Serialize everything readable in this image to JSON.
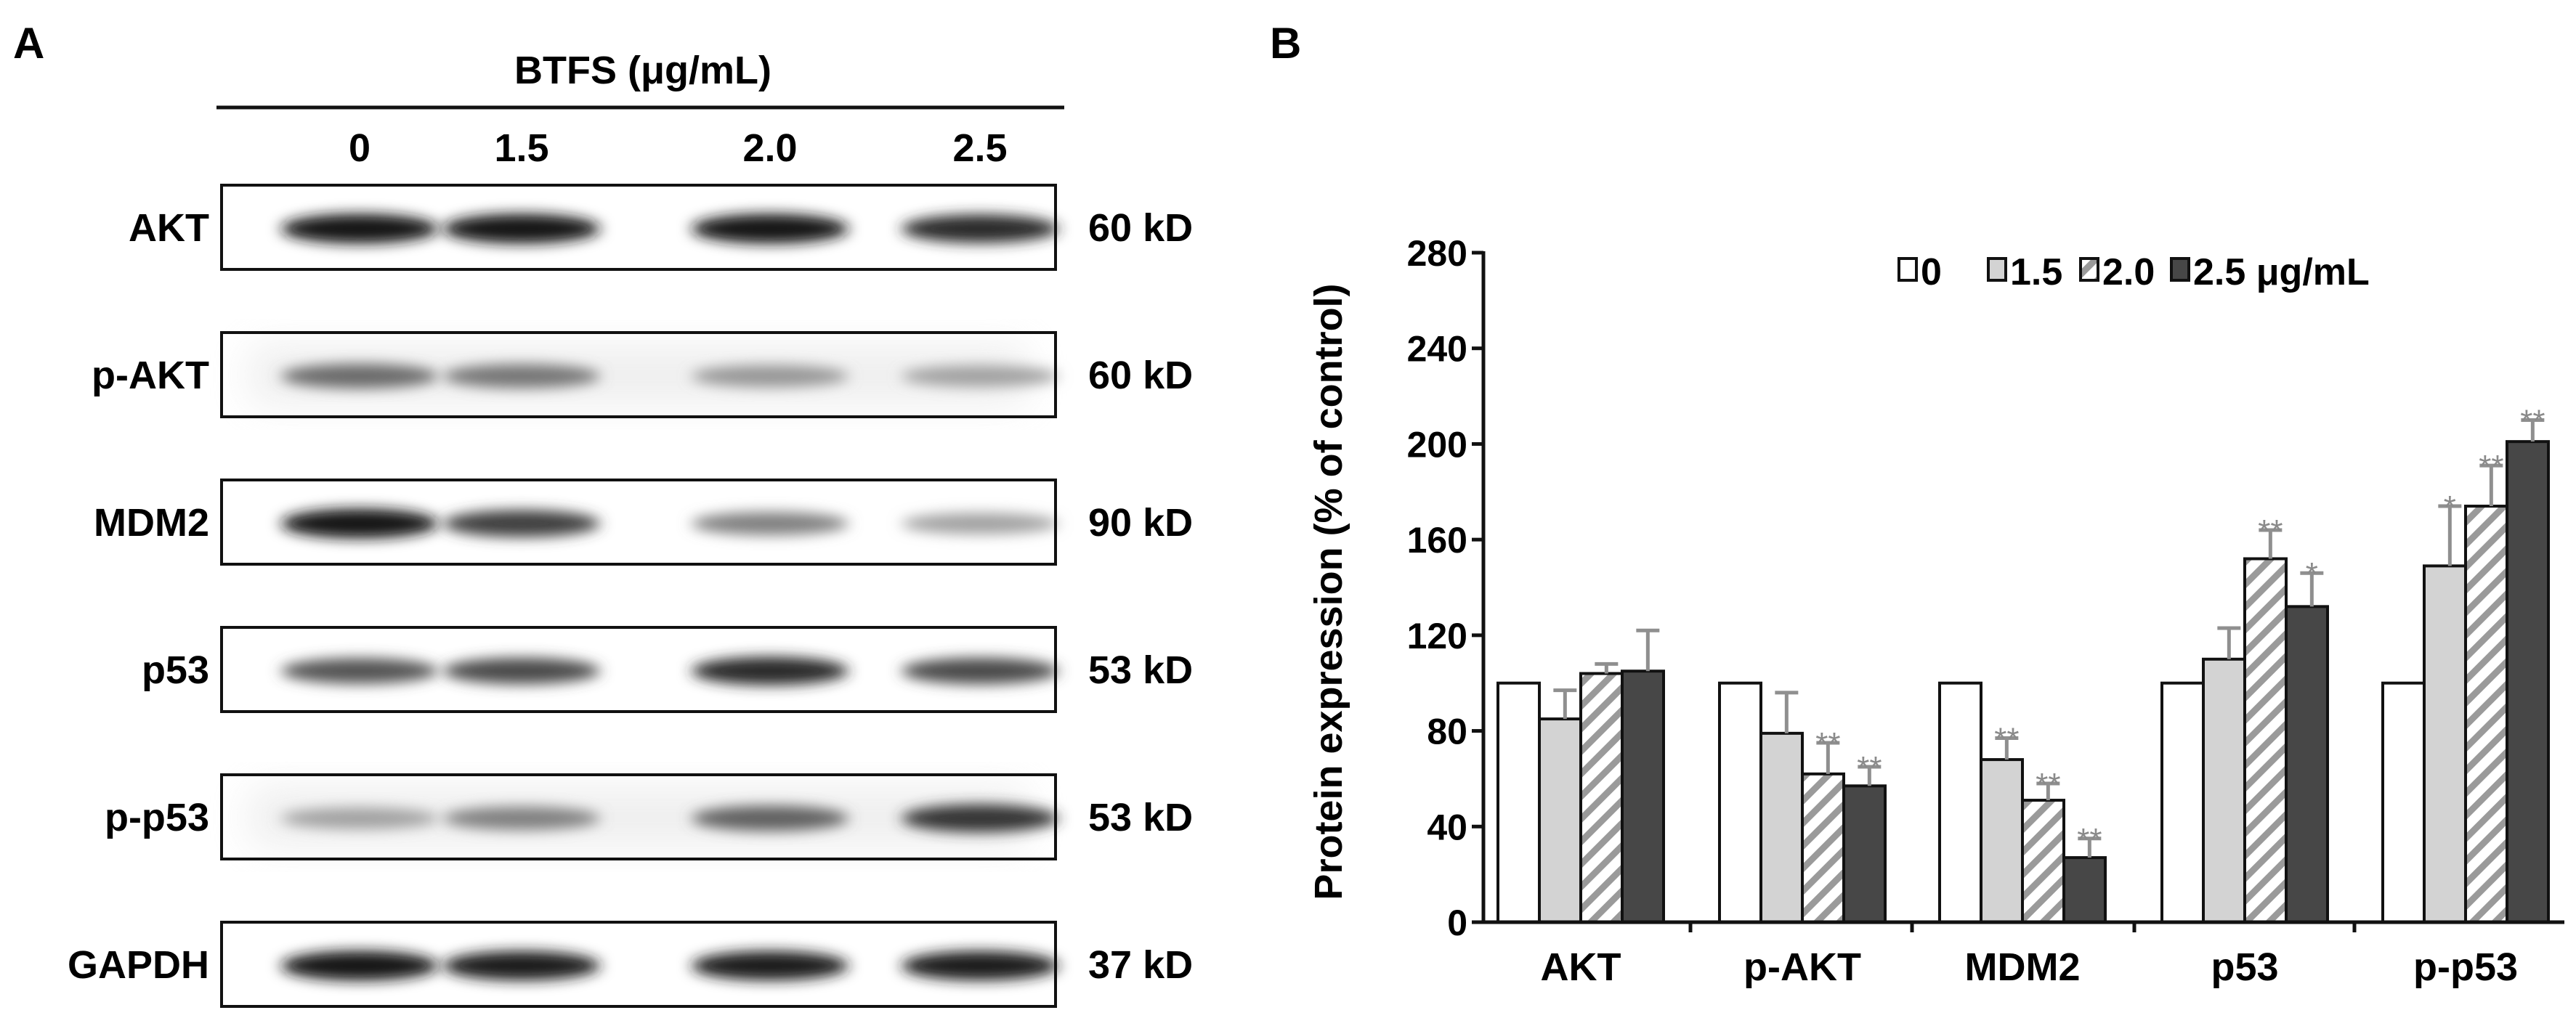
{
  "panels": {
    "a_label": "A",
    "b_label": "B"
  },
  "blot": {
    "treatment_header": "BTFS (μg/mL)",
    "concentrations": [
      "0",
      "1.5",
      "2.0",
      "2.5"
    ],
    "rows": [
      {
        "name": "AKT",
        "size": "60 kD",
        "intensities": [
          0.95,
          0.95,
          0.95,
          0.85
        ]
      },
      {
        "name": "p-AKT",
        "size": "60 kD",
        "intensities": [
          0.55,
          0.5,
          0.35,
          0.3
        ]
      },
      {
        "name": "MDM2",
        "size": "90 kD",
        "intensities": [
          0.95,
          0.75,
          0.45,
          0.3
        ]
      },
      {
        "name": "p53",
        "size": "53 kD",
        "intensities": [
          0.65,
          0.7,
          0.85,
          0.7
        ]
      },
      {
        "name": "p-p53",
        "size": "53 kD",
        "intensities": [
          0.3,
          0.45,
          0.6,
          0.8
        ]
      },
      {
        "name": "GAPDH",
        "size": "37 kD",
        "intensities": [
          0.95,
          0.92,
          0.92,
          0.92
        ]
      }
    ]
  },
  "colors": {
    "s0": "#ffffff",
    "s1": "#d3d3d3",
    "s2": "#9a9a9a",
    "s3": "#474747",
    "stroke": "#111111",
    "star": "#8a8a8a",
    "err": "#8f8f8f"
  },
  "chart_data": {
    "type": "bar",
    "title": "",
    "xlabel": "",
    "ylabel": "Protein expression (% of control)",
    "ylim": [
      0,
      280
    ],
    "yticks": [
      0,
      40,
      80,
      120,
      160,
      200,
      240,
      280
    ],
    "ytick_labels": [
      "0",
      "40",
      "80",
      "120",
      "160",
      "200",
      "240",
      "280"
    ],
    "categories": [
      "AKT",
      "p-AKT",
      "MDM2",
      "p53",
      "p-p53"
    ],
    "legend": {
      "labels": [
        "0",
        "1.5",
        "2.0",
        "2.5 μg/mL"
      ],
      "position": "top-right"
    },
    "series": [
      {
        "name": "0",
        "fill": "white",
        "values": [
          100,
          100,
          100,
          100,
          100
        ],
        "errors": [
          0,
          0,
          0,
          0,
          0
        ],
        "sig": [
          "",
          "",
          "",
          "",
          ""
        ]
      },
      {
        "name": "1.5",
        "fill": "light-gray",
        "values": [
          85,
          79,
          68,
          110,
          149
        ],
        "errors": [
          12,
          17,
          9,
          13,
          25
        ],
        "sig": [
          "",
          "",
          "**",
          "",
          "*"
        ]
      },
      {
        "name": "2.0",
        "fill": "hatched",
        "values": [
          104,
          62,
          51,
          152,
          174
        ],
        "errors": [
          4,
          13,
          7,
          12,
          17
        ],
        "sig": [
          "",
          "**",
          "**",
          "**",
          "**"
        ]
      },
      {
        "name": "2.5 μg/mL",
        "fill": "dark-gray",
        "values": [
          105,
          57,
          27,
          132,
          201
        ],
        "errors": [
          17,
          8,
          8,
          14,
          9
        ],
        "sig": [
          "",
          "**",
          "**",
          "*",
          "**"
        ]
      }
    ],
    "grid": false
  }
}
